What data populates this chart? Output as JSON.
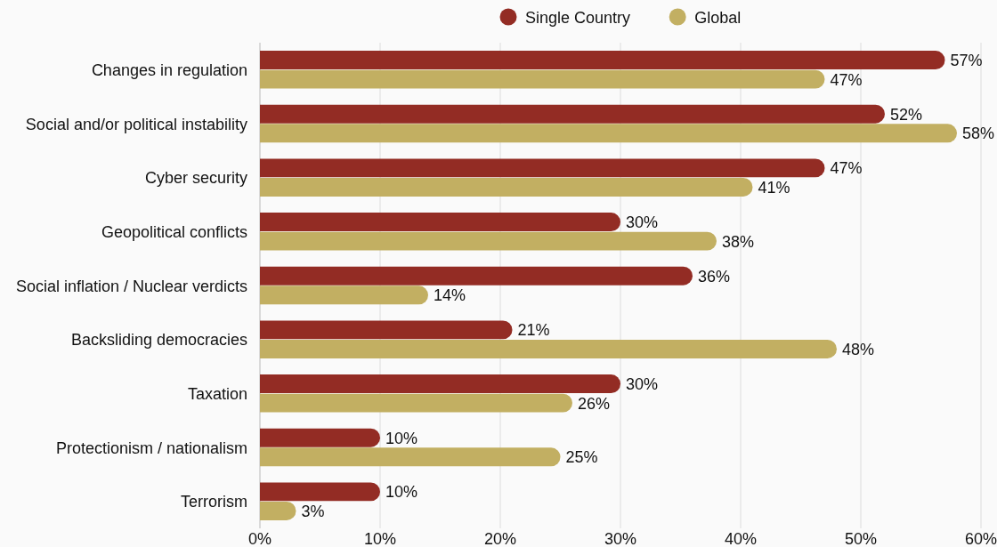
{
  "chart_data": {
    "type": "bar",
    "orientation": "horizontal",
    "categories": [
      "Changes in regulation",
      "Social and/or political instability",
      "Cyber security",
      "Geopolitical conflicts",
      "Social inflation / Nuclear verdicts",
      "Backsliding democracies",
      "Taxation",
      "Protectionism / nationalism",
      "Terrorism"
    ],
    "series": [
      {
        "name": "Single Country",
        "color": "#932c24",
        "values": [
          57,
          52,
          47,
          30,
          36,
          21,
          30,
          10,
          10
        ],
        "value_labels": [
          "57%",
          "52%",
          "47%",
          "30%",
          "36%",
          "21%",
          "30%",
          "10%",
          "10%"
        ]
      },
      {
        "name": "Global",
        "color": "#c2af62",
        "values": [
          47,
          58,
          41,
          38,
          14,
          48,
          26,
          25,
          3
        ],
        "value_labels": [
          "47%",
          "58%",
          "41%",
          "38%",
          "14%",
          "48%",
          "26%",
          "25%",
          "3%"
        ]
      }
    ],
    "xlim": [
      0,
      60
    ],
    "xticks": [
      {
        "value": 0,
        "label": "0%"
      },
      {
        "value": 10,
        "label": "10%"
      },
      {
        "value": 20,
        "label": "20%"
      },
      {
        "value": 30,
        "label": "30%"
      },
      {
        "value": 40,
        "label": "40%"
      },
      {
        "value": 50,
        "label": "50%"
      },
      {
        "value": 60,
        "label": "60%"
      }
    ],
    "grid": "x",
    "legend": "top"
  }
}
